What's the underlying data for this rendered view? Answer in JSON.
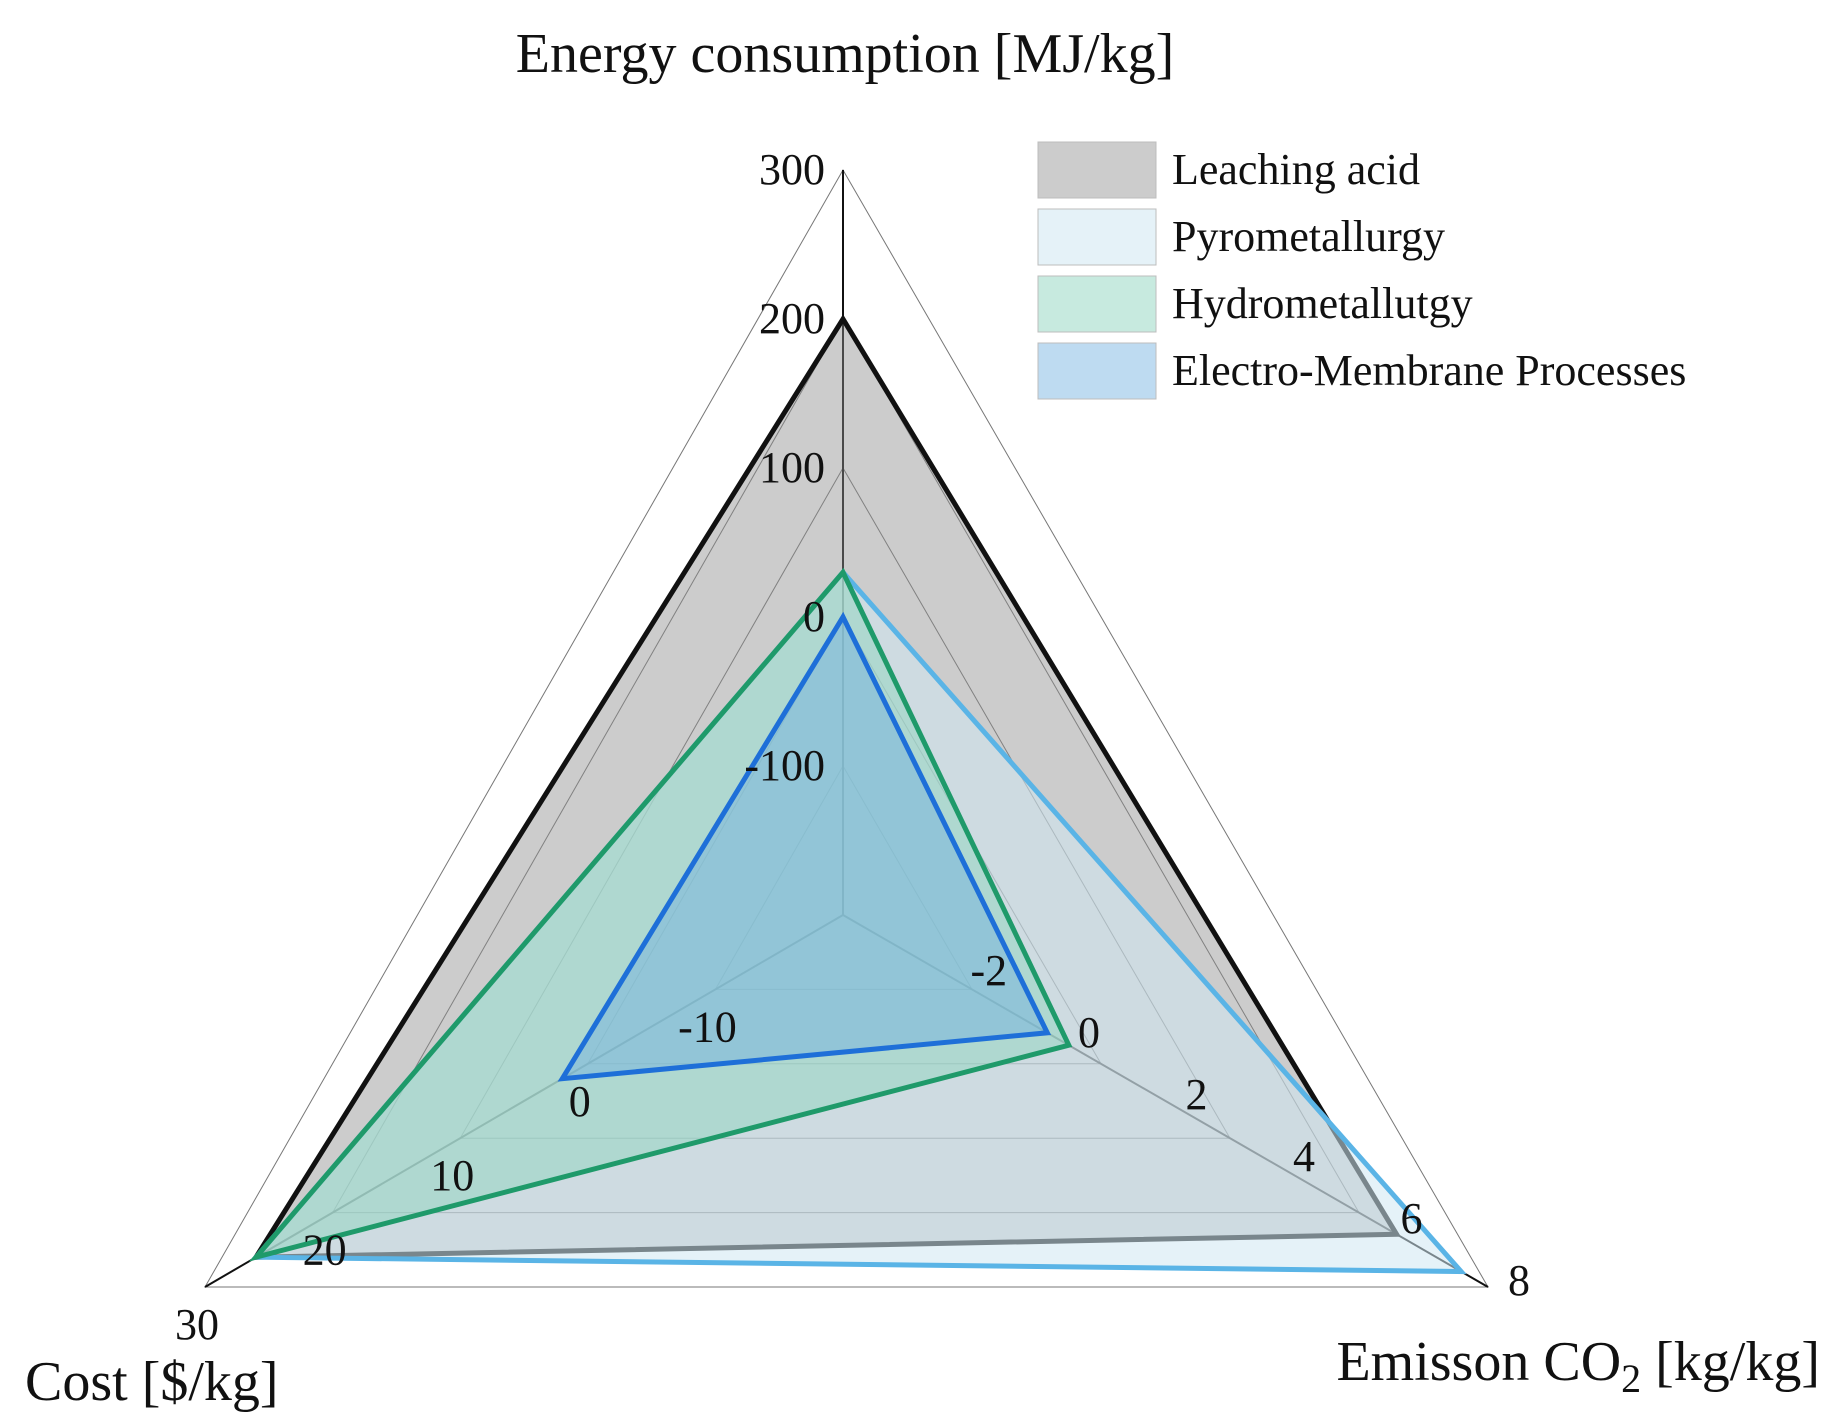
{
  "chart_data": {
    "type": "radar",
    "axes": [
      {
        "id": "energy",
        "label_main": "Energy consumption [MJ/kg]",
        "label_sub": "",
        "label_tail": "",
        "min": -200,
        "max": 300,
        "ticks": [
          -100,
          0,
          100,
          200,
          300
        ]
      },
      {
        "id": "emission",
        "label_main": "Emisson CO",
        "label_sub": "2",
        "label_tail": " [kg/kg]",
        "min": -4,
        "max": 8,
        "ticks": [
          -2,
          0,
          2,
          4,
          6,
          8
        ]
      },
      {
        "id": "cost",
        "label_main": "Cost [$/kg]",
        "label_sub": "",
        "label_tail": "",
        "min": -20,
        "max": 30,
        "ticks": [
          -10,
          0,
          10,
          20,
          30
        ]
      }
    ],
    "series": [
      {
        "name": "Leaching acid",
        "stroke": "#111111",
        "fill": "#8f8f8f",
        "fill_opacity": 0.45,
        "values": {
          "energy": 200,
          "emission": 6.3,
          "cost": 26
        }
      },
      {
        "name": "Pyrometallurgy",
        "stroke": "#5ab4e6",
        "fill": "#cfe7f3",
        "fill_opacity": 0.55,
        "values": {
          "energy": 30,
          "emission": 7.5,
          "cost": 26
        }
      },
      {
        "name": "Hydrometallutgy",
        "stroke": "#1f9a6a",
        "fill": "#8fd6c0",
        "fill_opacity": 0.5,
        "values": {
          "energy": 30,
          "emission": 0.2,
          "cost": 26
        }
      },
      {
        "name": "Electro-Membrane Processes",
        "stroke": "#1e6fd8",
        "fill": "#6fb0e0",
        "fill_opacity": 0.45,
        "values": {
          "energy": 0,
          "emission": -0.2,
          "cost": 2
        }
      }
    ],
    "legend_position": "top-right"
  }
}
